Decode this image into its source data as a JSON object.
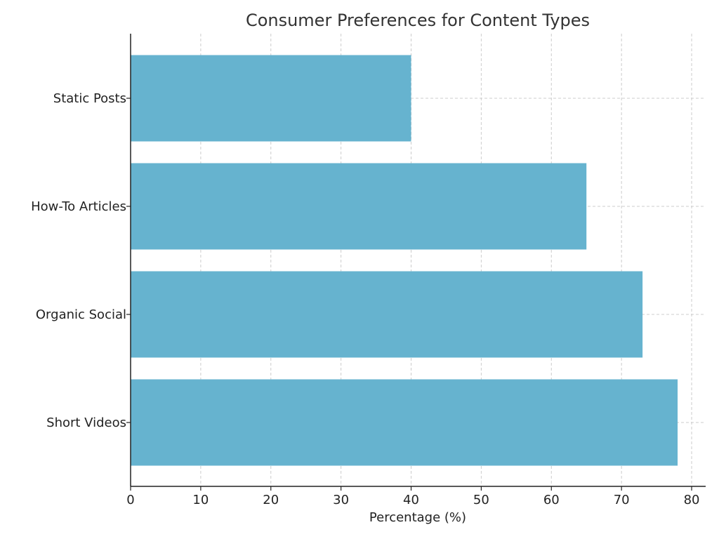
{
  "chart_data": {
    "type": "bar",
    "orientation": "horizontal",
    "title": "Consumer Preferences for Content Types",
    "xlabel": "Percentage (%)",
    "ylabel": "",
    "categories": [
      "Short Videos",
      "Organic Social",
      "How-To Articles",
      "Static Posts"
    ],
    "values": [
      78,
      73,
      65,
      40
    ],
    "xlim": [
      0,
      82
    ],
    "xticks": [
      0,
      10,
      20,
      30,
      40,
      50,
      60,
      70,
      80
    ],
    "grid": true,
    "legend": "none",
    "bar_color": "#66b3cf"
  }
}
